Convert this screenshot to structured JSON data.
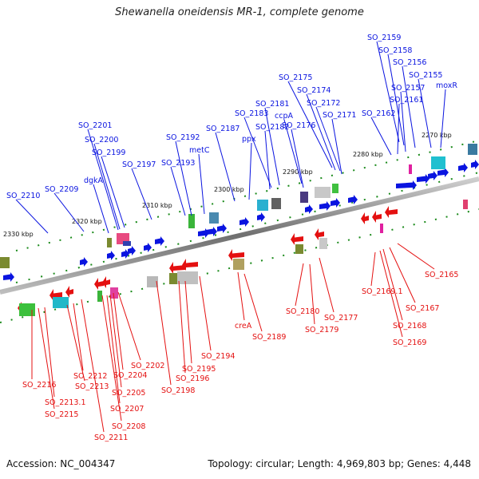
{
  "title": "Shewanella oneidensis MR-1, complete genome",
  "footer": {
    "accession": "Accession: NC_004347",
    "topology": "Topology: circular; Length: 4,969,803 bp; Genes: 4,448"
  },
  "colors": {
    "forward_strand": "#0a14e0",
    "reverse_strand": "#e41010",
    "backbone": "#7a7a7a",
    "tick": "#1a8a1a"
  },
  "scale_labels": [
    {
      "text": "2270 kbp"
    },
    {
      "text": "2280 kbp"
    },
    {
      "text": "2290 kbp"
    },
    {
      "text": "2300 kbp"
    },
    {
      "text": "2310 kbp"
    },
    {
      "text": "2320 kbp"
    },
    {
      "text": "2330 kbp"
    }
  ],
  "forward_genes": [
    "SO_2159",
    "SO_2158",
    "SO_2156",
    "SO_2155",
    "SO_2157",
    "moxR",
    "SO_2161",
    "SO_2162",
    "SO_2175",
    "SO_2174",
    "SO_2172",
    "SO_2171",
    "SO_2181",
    "SO_2183",
    "ccpA",
    "SO_2182",
    "SO_2176",
    "SO_2187",
    "ppx",
    "SO_2201",
    "SO_2200",
    "SO_2192",
    "SO_2199",
    "metC",
    "SO_2197",
    "SO_2193",
    "dgkA",
    "SO_2209",
    "SO_2210"
  ],
  "reverse_genes": [
    "SO_2165",
    "SO_2169.1",
    "SO_2167",
    "SO_2168",
    "SO_2169",
    "SO_2180",
    "SO_2177",
    "SO_2179",
    "creA",
    "SO_2189",
    "SO_2194",
    "SO_2195",
    "SO_2196",
    "SO_2198",
    "SO_2202",
    "SO_2204",
    "SO_2205",
    "SO_2207",
    "SO_2208",
    "SO_2211",
    "SO_2212",
    "SO_2213",
    "SO_2213.1",
    "SO_2215",
    "SO_2216"
  ]
}
